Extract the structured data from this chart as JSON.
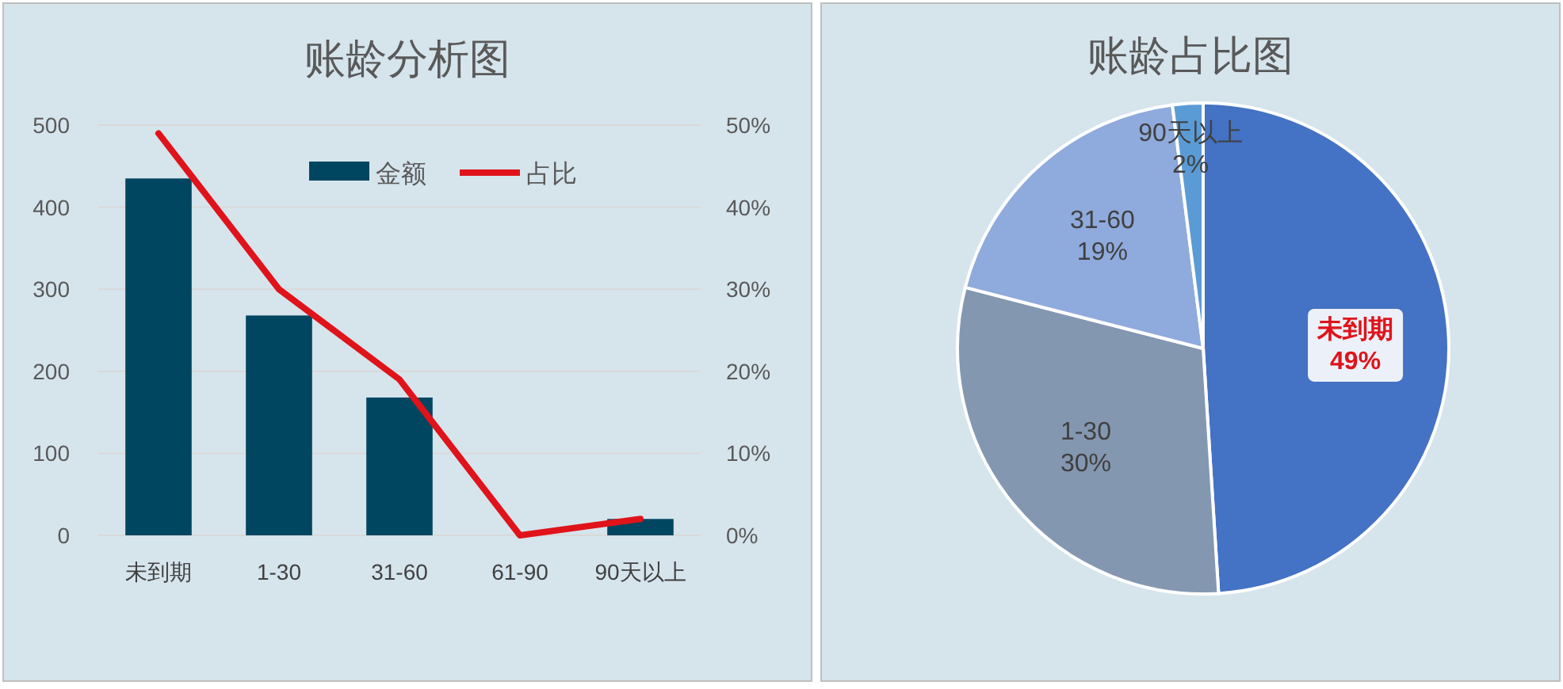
{
  "chart_data": [
    {
      "type": "bar",
      "title": "账龄分析图",
      "categories": [
        "未到期",
        "1-30",
        "31-60",
        "61-90",
        "90天以上"
      ],
      "series": [
        {
          "name": "金额",
          "type": "bar",
          "color": "#004660",
          "values": [
            435,
            268,
            168,
            0,
            20
          ]
        },
        {
          "name": "占比",
          "type": "line",
          "axis": "y2",
          "color": "#e0131a",
          "values": [
            49,
            30,
            19,
            0,
            2
          ]
        }
      ],
      "ylim": [
        0,
        500
      ],
      "yticks": [
        0,
        100,
        200,
        300,
        400,
        500
      ],
      "y2lim": [
        0,
        50
      ],
      "y2ticks": [
        {
          "value": 0,
          "label": "0%"
        },
        {
          "value": 10,
          "label": "10%"
        },
        {
          "value": 20,
          "label": "20%"
        },
        {
          "value": 30,
          "label": "30%"
        },
        {
          "value": 40,
          "label": "40%"
        },
        {
          "value": 50,
          "label": "50%"
        }
      ],
      "grid": "y",
      "legend": "top right",
      "marker": "none"
    },
    {
      "type": "pie",
      "title": "账龄占比图",
      "categories": [
        "未到期",
        "1-30",
        "31-60",
        "90天以上"
      ],
      "values": [
        49,
        30,
        19,
        2
      ],
      "colors": [
        "#4472c4",
        "#8497b0",
        "#8faadc",
        "#5b9bd5"
      ],
      "value_labels": [
        "49%",
        "30%",
        "19%",
        "2%"
      ]
    }
  ]
}
